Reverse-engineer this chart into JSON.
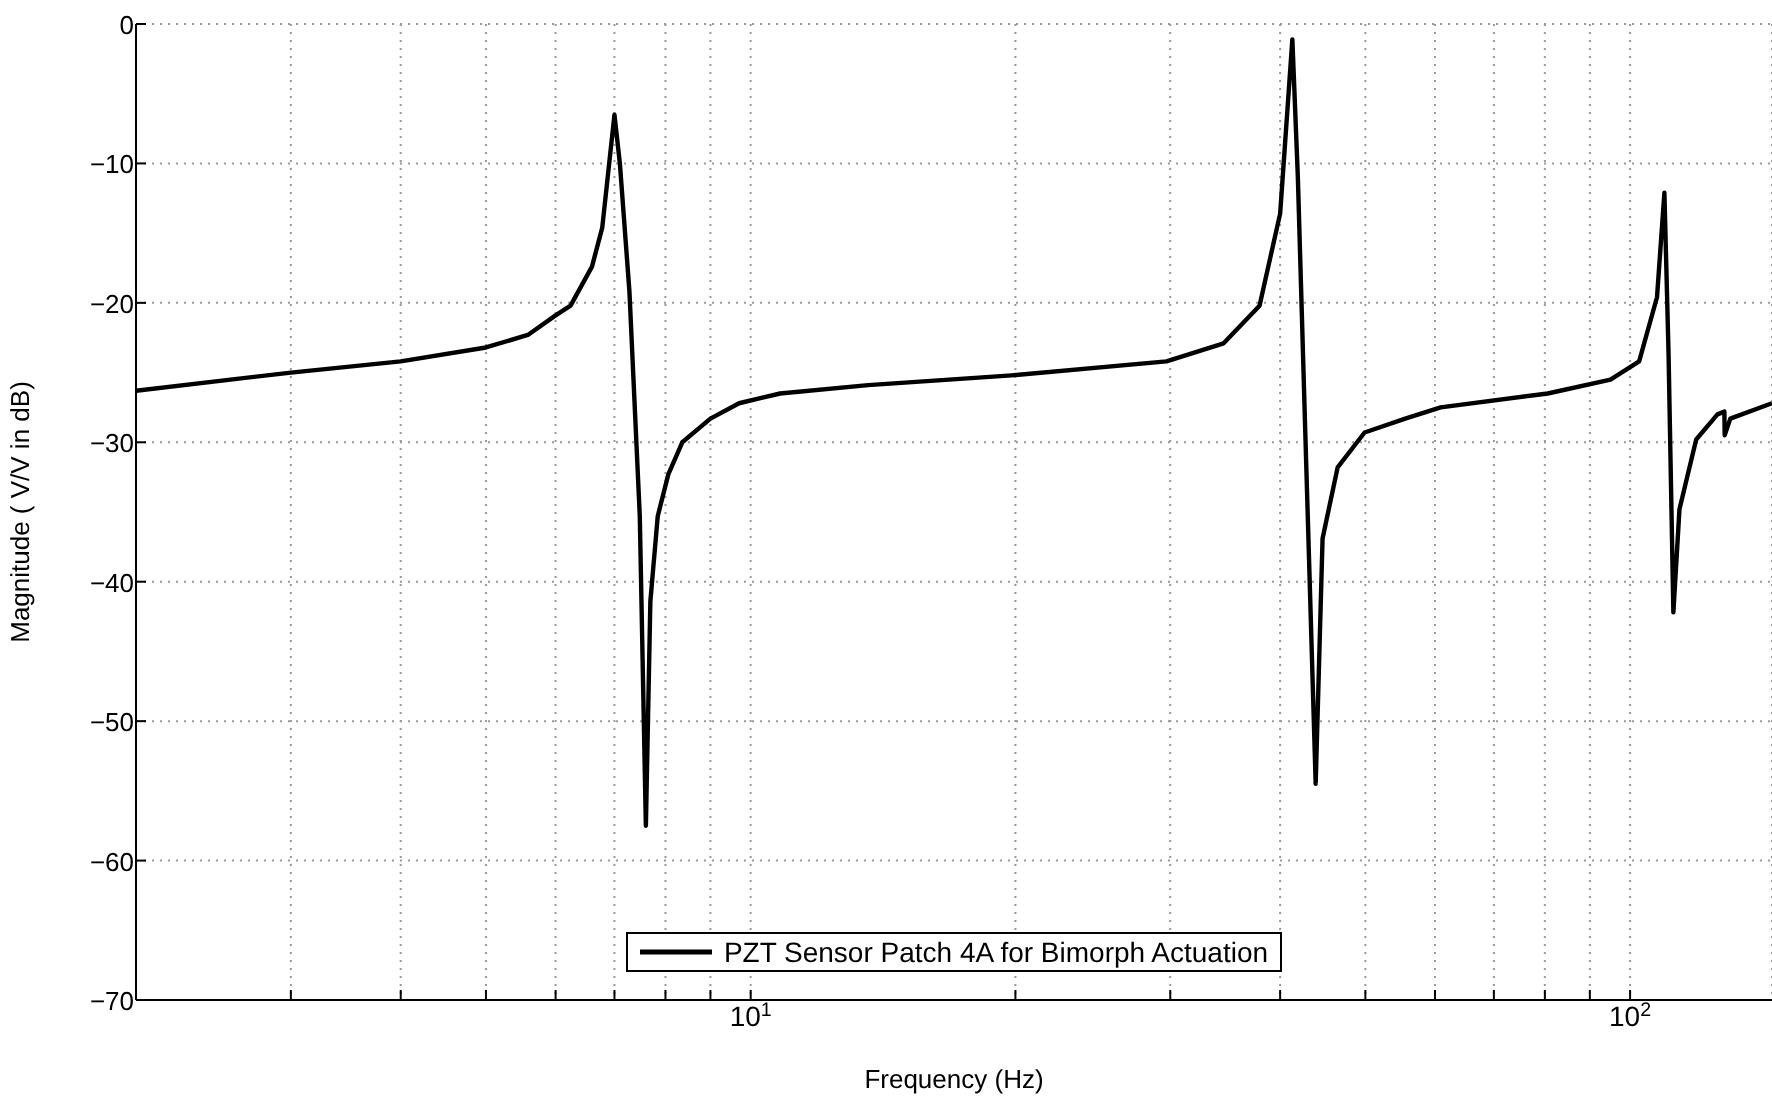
{
  "chart_data": {
    "type": "line",
    "xlabel": "Frequency (Hz)",
    "ylabel": "Magnitude ( V/V in dB)",
    "log": "x",
    "grid": true,
    "legend": "bottom",
    "marker": "none",
    "line_style": "solid",
    "xlim": [
      2,
      145
    ],
    "ylim": [
      -70,
      0
    ],
    "xticks": [
      {
        "value": 2,
        "label": null
      },
      {
        "value": 3,
        "label": null
      },
      {
        "value": 4,
        "label": null
      },
      {
        "value": 5,
        "label": null
      },
      {
        "value": 6,
        "label": null
      },
      {
        "value": 7,
        "label": null
      },
      {
        "value": 8,
        "label": null
      },
      {
        "value": 9,
        "label": null
      },
      {
        "value": 10,
        "label": "10$^{1}$"
      },
      {
        "value": 20,
        "label": null
      },
      {
        "value": 30,
        "label": null
      },
      {
        "value": 40,
        "label": null
      },
      {
        "value": 50,
        "label": null
      },
      {
        "value": 60,
        "label": null
      },
      {
        "value": 70,
        "label": null
      },
      {
        "value": 80,
        "label": null
      },
      {
        "value": 90,
        "label": null
      },
      {
        "value": 100,
        "label": "10$^{2}$"
      }
    ],
    "yticks": [
      {
        "value": -70,
        "label": "−70"
      },
      {
        "value": -60,
        "label": "−60"
      },
      {
        "value": -50,
        "label": "−50"
      },
      {
        "value": -40,
        "label": "−40"
      },
      {
        "value": -30,
        "label": "−30"
      },
      {
        "value": -20,
        "label": "−20"
      },
      {
        "value": -10,
        "label": "−10"
      },
      0
    ],
    "x": [
      2,
      3,
      4,
      5,
      5.58,
      6,
      6.24,
      6.6,
      6.78,
      7,
      7.1,
      7.28,
      7.48,
      7.6,
      7.69,
      7.84,
      8.06,
      8.36,
      9,
      9.7,
      10.8,
      13.6,
      19.8,
      29.7,
      34.5,
      37.9,
      40,
      41.3,
      41.9,
      42.7,
      43.9,
      44.7,
      46.5,
      49.9,
      55.5,
      60.9,
      80.6,
      95,
      102.4,
      107.3,
      109.4,
      110.6,
      112,
      113.8,
      118.9,
      125.7,
      128,
      128.1,
      130,
      145
    ],
    "series": [
      {
        "name": "PZT Sensor Patch 4A for Bimorph Actuation",
        "color": "#000000",
        "values": [
          -26.3,
          -25,
          -24.2,
          -23.2,
          -22.3,
          -20.9,
          -20.2,
          -17.4,
          -14.6,
          -6.5,
          -10,
          -19.2,
          -35.3,
          -57.5,
          -41.4,
          -35.3,
          -32.3,
          -30,
          -28.3,
          -27.2,
          -26.5,
          -25.9,
          -25.2,
          -24.2,
          -22.9,
          -20.2,
          -13.6,
          -1.1,
          -11,
          -28.8,
          -54.5,
          -36.9,
          -31.8,
          -29.3,
          -28.3,
          -27.5,
          -26.5,
          -25.5,
          -24.2,
          -19.6,
          -12.1,
          -23.7,
          -42.2,
          -34.8,
          -29.8,
          -28,
          -27.8,
          -29.5,
          -28.3,
          -27.2
        ]
      }
    ]
  }
}
